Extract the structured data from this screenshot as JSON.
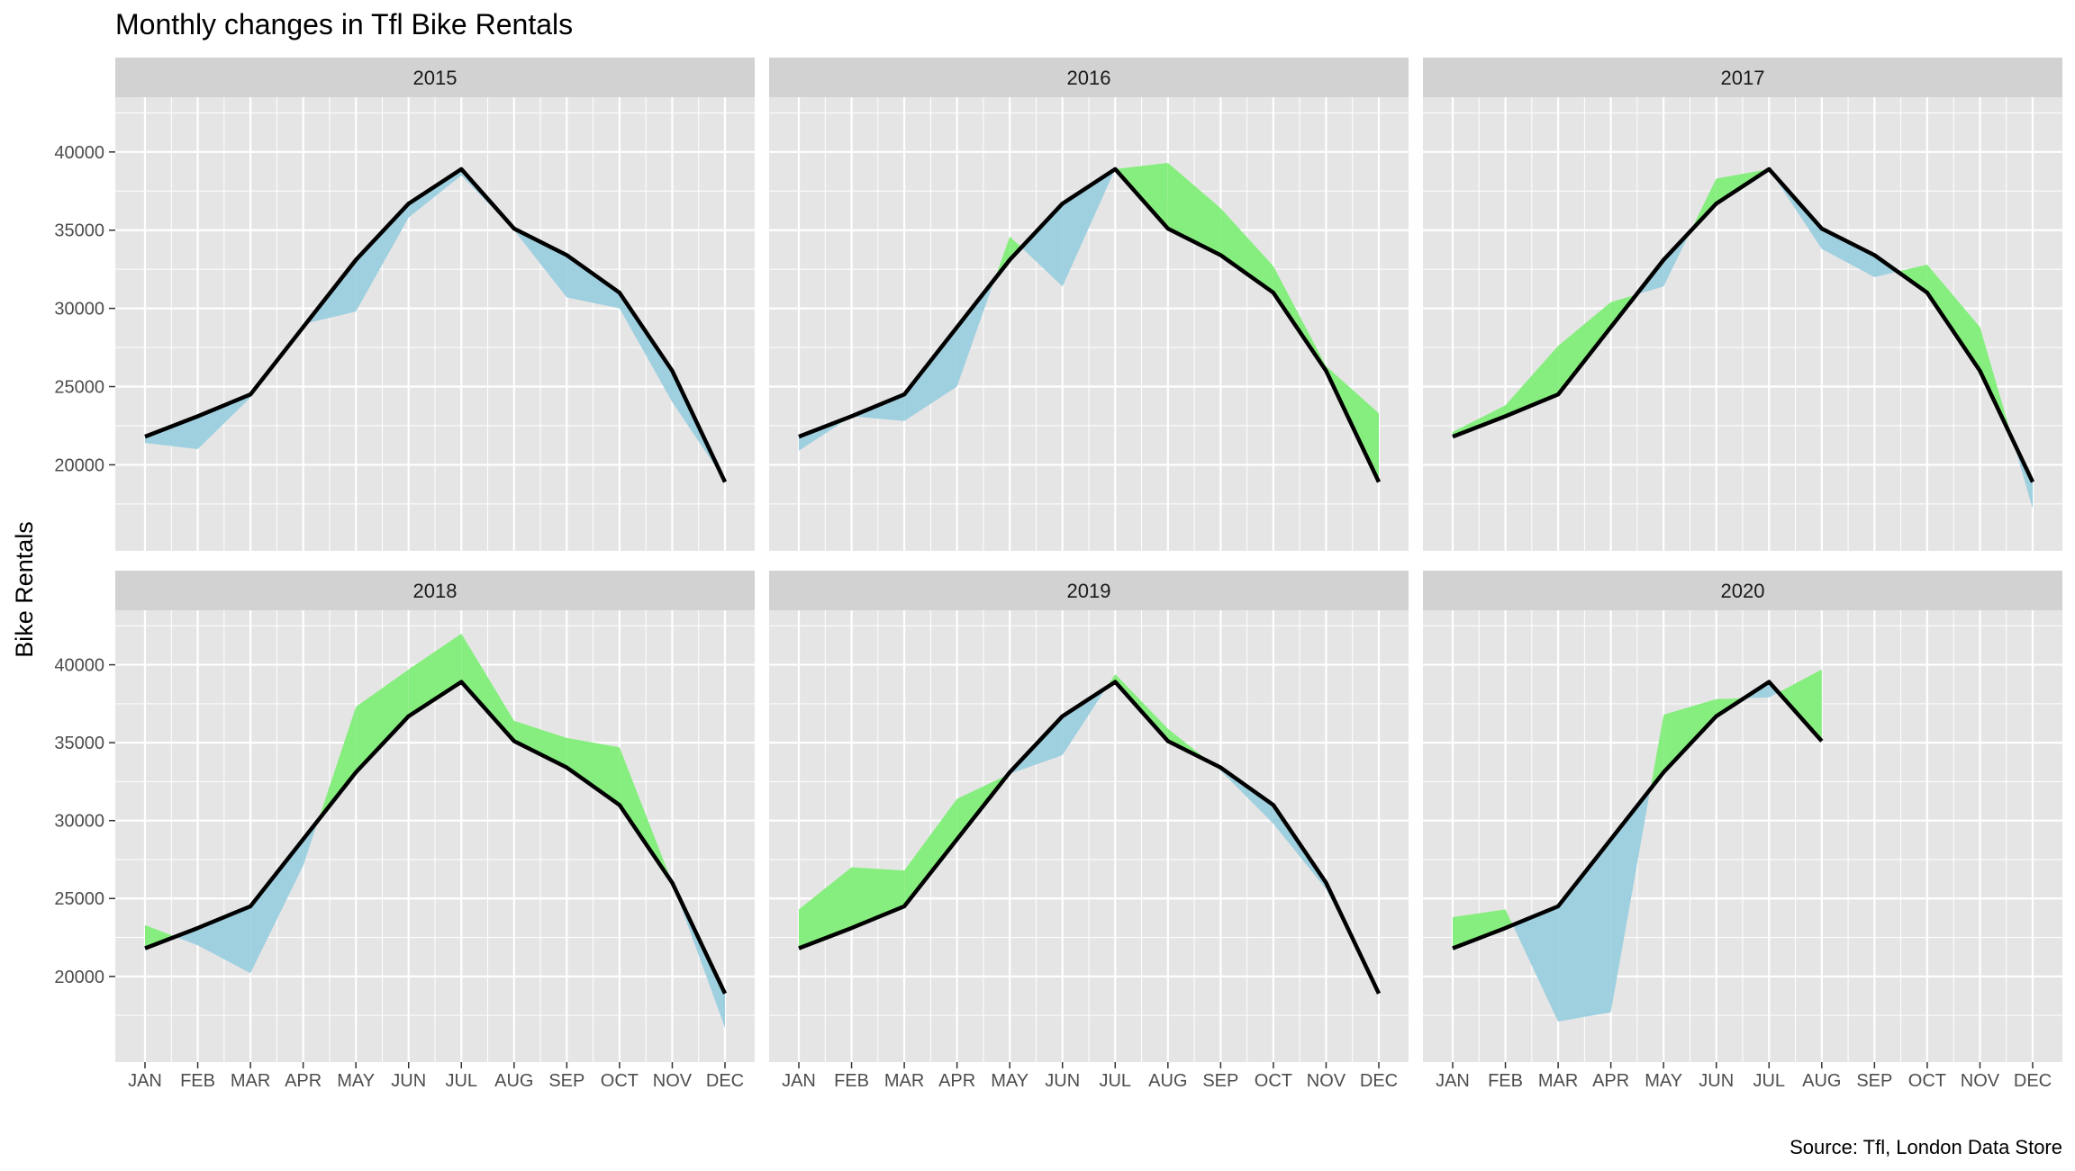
{
  "title": "Monthly changes in Tfl Bike Rentals",
  "ylabel": "Bike Rentals",
  "caption": "Source: Tfl, London Data Store",
  "colors": {
    "panel_bg": "#e5e5e5",
    "strip_bg": "#d2d2d2",
    "grid": "#ffffff",
    "above_expected": "#86ee7e",
    "below_expected": "#9fd0e0",
    "expected_line": "#000000"
  },
  "chart_data": {
    "type": "area",
    "layout": "facet-grid 2x3",
    "months": [
      "JAN",
      "FEB",
      "MAR",
      "APR",
      "MAY",
      "JUN",
      "JUL",
      "AUG",
      "SEP",
      "OCT",
      "NOV",
      "DEC"
    ],
    "ylim": [
      14500,
      43500
    ],
    "yticks": [
      20000,
      25000,
      30000,
      35000,
      40000
    ],
    "expected": [
      21800,
      23100,
      24500,
      28800,
      33100,
      36700,
      38900,
      35100,
      33400,
      31000,
      26000,
      18900
    ],
    "grid": true,
    "legend": "none",
    "panels": [
      {
        "year": "2015",
        "actual": [
          21400,
          21000,
          24300,
          29000,
          29800,
          35800,
          38500,
          35000,
          30700,
          30000,
          24000,
          19000
        ]
      },
      {
        "year": "2016",
        "actual": [
          20900,
          23100,
          22800,
          25000,
          34600,
          31400,
          38900,
          39300,
          36400,
          32700,
          26300,
          23300
        ]
      },
      {
        "year": "2017",
        "actual": [
          22100,
          23800,
          27600,
          30400,
          31400,
          38300,
          38900,
          33800,
          32000,
          32800,
          28800,
          17200
        ]
      },
      {
        "year": "2018",
        "actual": [
          23300,
          22000,
          20200,
          27100,
          37300,
          39700,
          42000,
          36400,
          35300,
          34700,
          26000,
          16700
        ]
      },
      {
        "year": "2019",
        "actual": [
          24300,
          27000,
          26800,
          31400,
          33000,
          34200,
          39400,
          35900,
          33200,
          29800,
          25600,
          18900
        ]
      },
      {
        "year": "2020",
        "actual": [
          23800,
          24300,
          17100,
          17700,
          36800,
          37800,
          37900,
          39700
        ]
      }
    ]
  }
}
